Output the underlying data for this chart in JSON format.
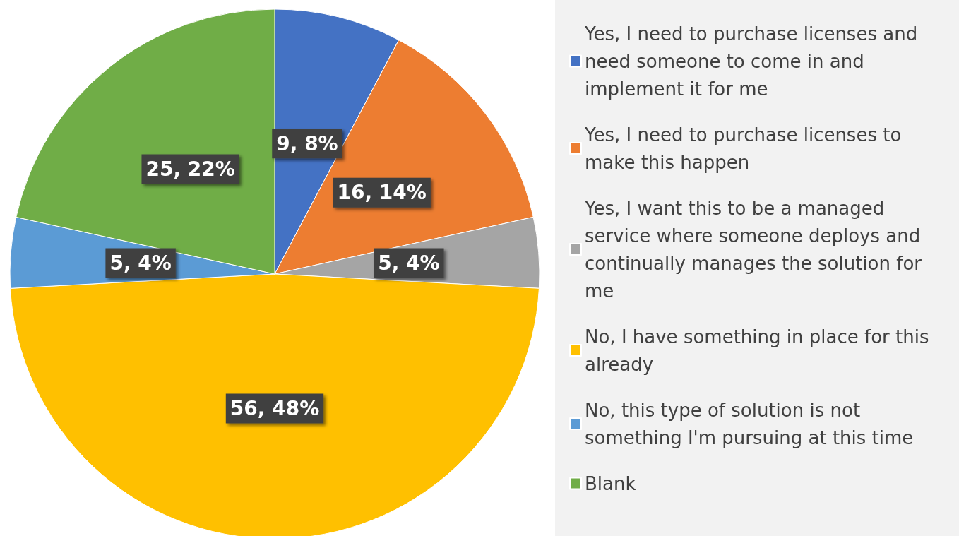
{
  "chart_data": {
    "type": "pie",
    "categories": [
      "Yes, I need to purchase licenses and need someone to come in and implement it for me",
      "Yes, I need to purchase licenses to make this happen",
      "Yes, I want this to be a managed service where someone deploys and continually manages the solution for me",
      "No, I have something in place for this already",
      "No, this type of solution is not something I'm pursuing at this time",
      "Blank"
    ],
    "values": [
      9,
      16,
      5,
      56,
      5,
      25
    ],
    "value_labels": [
      "9, 8%",
      "16, 14%",
      "5, 4%",
      "56, 48%",
      "5, 4%",
      "25, 22%"
    ],
    "colors": [
      "#4472c4",
      "#ed7d31",
      "#a5a5a5",
      "#ffc000",
      "#5b9bd5",
      "#70ad47"
    ],
    "legend": "right"
  }
}
